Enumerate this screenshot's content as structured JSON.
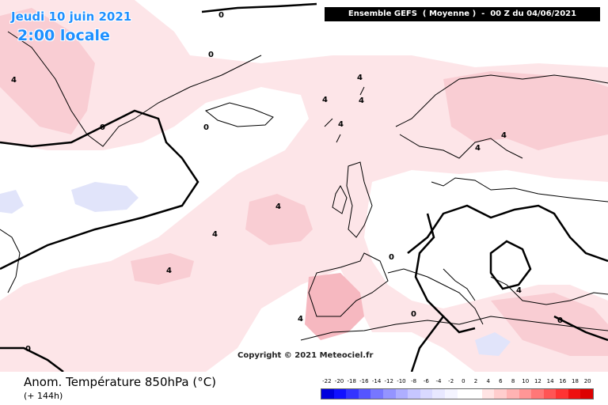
{
  "overlay": {
    "date": "Jeudi 10 juin 2021",
    "time": "2:00 locale",
    "header": "Ensemble GEFS  ( Moyenne )  -  00 Z du 04/06/2021",
    "copyright": "Copyright © 2021 Meteociel.fr"
  },
  "footer": {
    "title": "Anom. Température 850hPa (°C)",
    "subtitle": "(+ 144h)"
  },
  "legend": {
    "labels": [
      "-22",
      "-20",
      "-18",
      "-16",
      "-14",
      "-12",
      "-10",
      "-8",
      "-6",
      "-4",
      "-2",
      "0",
      "2",
      "4",
      "6",
      "8",
      "10",
      "12",
      "14",
      "16",
      "18",
      "20"
    ],
    "colors": [
      "#0000dd",
      "#1111ff",
      "#3333ff",
      "#5555ff",
      "#7777ff",
      "#9494ff",
      "#aeaeff",
      "#c6c6ff",
      "#d9d9ff",
      "#e8e8ff",
      "#f4f4ff",
      "#ffffff",
      "#ffffff",
      "#ffe4e4",
      "#ffcdcd",
      "#ffb3b3",
      "#ff9696",
      "#ff7777",
      "#ff5555",
      "#ff3333",
      "#ee1111",
      "#dd0000"
    ]
  },
  "contour_labels": [
    "4",
    "4",
    "4",
    "4",
    "4",
    "4",
    "4",
    "4",
    "4",
    "4",
    "4",
    "4",
    "0",
    "0",
    "0",
    "0",
    "0",
    "0",
    "0",
    "0"
  ],
  "colors": {
    "warm_light": "#fde4e6",
    "warm_medium": "#f8c9ce",
    "cold_light": "#e3e6fa",
    "ocean_bg": "#ffffff",
    "header_bg": "#000000",
    "title_blue": "#1e90ff"
  }
}
